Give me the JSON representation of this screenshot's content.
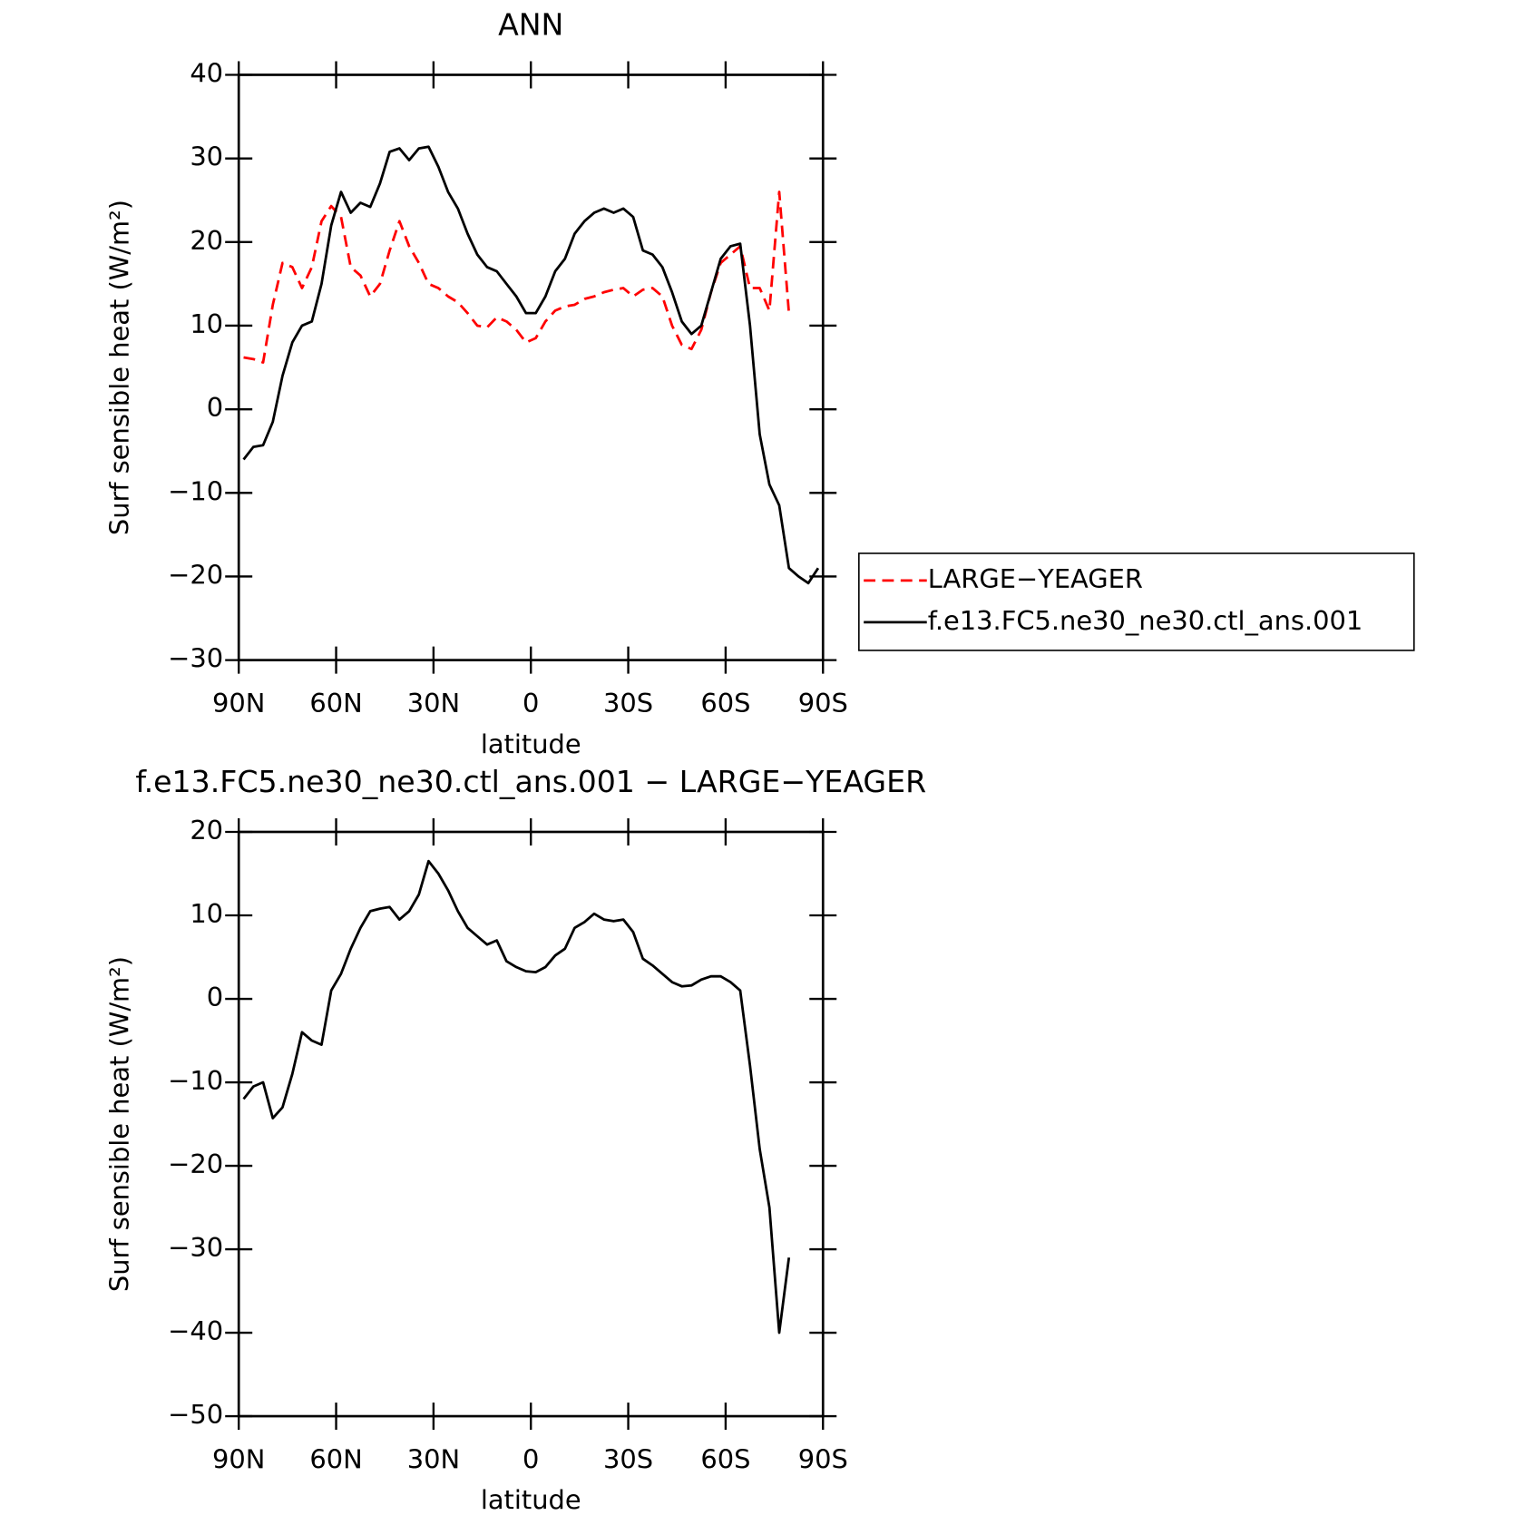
{
  "chart_data": [
    {
      "type": "line",
      "title": "ANN",
      "xlabel": "latitude",
      "ylabel": "Surf sensible heat (W/m²)",
      "x": [
        88.5,
        85.5,
        82.5,
        79.5,
        76.5,
        73.5,
        70.5,
        67.5,
        64.5,
        61.5,
        58.5,
        55.5,
        52.5,
        49.5,
        46.5,
        43.5,
        40.5,
        37.5,
        34.5,
        31.5,
        28.5,
        25.5,
        22.5,
        19.5,
        16.5,
        13.5,
        10.5,
        7.5,
        4.5,
        1.5,
        -1.5,
        -4.5,
        -7.5,
        -10.5,
        -13.5,
        -16.5,
        -19.5,
        -22.5,
        -25.5,
        -28.5,
        -31.5,
        -34.5,
        -37.5,
        -40.5,
        -43.5,
        -46.5,
        -49.5,
        -52.5,
        -55.5,
        -58.5,
        -61.5,
        -64.5,
        -67.5,
        -70.5,
        -73.5,
        -76.5,
        -79.5,
        -82.5,
        -85.5,
        -88.5
      ],
      "series": [
        {
          "name": "LARGE−YEAGER",
          "color": "#ff0000",
          "dashed": true,
          "values": [
            6.2,
            6,
            5.6,
            12.5,
            17.5,
            17,
            14.5,
            17,
            22.5,
            24.3,
            23,
            17,
            16,
            13.5,
            15,
            19,
            22.5,
            19.5,
            17.5,
            15,
            14.5,
            13.5,
            12.8,
            11.5,
            10,
            9.8,
            11,
            10.5,
            9.5,
            8,
            8.5,
            10.5,
            11.8,
            12.3,
            12.5,
            13.2,
            13.5,
            14,
            14.3,
            14.5,
            13.5,
            14.3,
            14.5,
            13.5,
            10,
            7.7,
            7.2,
            9.5,
            14,
            17.5,
            18.5,
            19.5,
            14.5,
            14.5,
            11.8,
            26,
            11.5,
            null,
            null,
            null
          ]
        },
        {
          "name": "f.e13.FC5.ne30_ne30.ctl_ans.001",
          "color": "#000000",
          "dashed": false,
          "values": [
            -6,
            -4.5,
            -4.3,
            -1.5,
            4,
            8,
            10,
            10.5,
            15,
            22,
            26,
            23.5,
            24.7,
            24.2,
            27,
            30.8,
            31.2,
            29.8,
            31.2,
            31.4,
            29,
            26,
            24,
            21,
            18.5,
            17,
            16.5,
            15,
            13.5,
            11.5,
            11.5,
            13.5,
            16.5,
            18,
            21,
            22.5,
            23.5,
            24,
            23.5,
            24,
            23,
            19,
            18.5,
            17,
            14,
            10.5,
            9,
            10,
            14,
            18,
            19.5,
            19.8,
            10,
            -3,
            -9,
            -11.5,
            -19,
            -20,
            -20.8,
            -19
          ]
        }
      ],
      "xlim": [
        90,
        -90
      ],
      "xticks": [
        {
          "value": 90,
          "label": "90N"
        },
        {
          "value": 60,
          "label": "60N"
        },
        {
          "value": 30,
          "label": "30N"
        },
        0,
        {
          "value": -30,
          "label": "30S"
        },
        {
          "value": -60,
          "label": "60S"
        },
        {
          "value": -90,
          "label": "90S"
        }
      ],
      "ylim": [
        -30,
        40
      ],
      "yticks": [
        {
          "value": -30,
          "label": "−30"
        },
        {
          "value": -20,
          "label": "−20"
        },
        {
          "value": -10,
          "label": "−10"
        },
        0,
        10,
        20,
        30,
        40
      ],
      "legend": "right"
    },
    {
      "type": "line",
      "title": "f.e13.FC5.ne30_ne30.ctl_ans.001 − LARGE−YEAGER",
      "xlabel": "latitude",
      "ylabel": "Surf sensible heat (W/m²)",
      "x": [
        88.5,
        85.5,
        82.5,
        79.5,
        76.5,
        73.5,
        70.5,
        67.5,
        64.5,
        61.5,
        58.5,
        55.5,
        52.5,
        49.5,
        46.5,
        43.5,
        40.5,
        37.5,
        34.5,
        31.5,
        28.5,
        25.5,
        22.5,
        19.5,
        16.5,
        13.5,
        10.5,
        7.5,
        4.5,
        1.5,
        -1.5,
        -4.5,
        -7.5,
        -10.5,
        -13.5,
        -16.5,
        -19.5,
        -22.5,
        -25.5,
        -28.5,
        -31.5,
        -34.5,
        -37.5,
        -40.5,
        -43.5,
        -46.5,
        -49.5,
        -52.5,
        -55.5,
        -58.5,
        -61.5,
        -64.5,
        -67.5,
        -70.5,
        -73.5,
        -76.5,
        -79.5,
        -82.5,
        -85.5,
        -88.5
      ],
      "series": [
        {
          "color": "#000000",
          "dashed": false,
          "values": [
            -12,
            -10.5,
            -10,
            -14.3,
            -13,
            -9,
            -4,
            -5,
            -5.5,
            1,
            3,
            6,
            8.5,
            10.5,
            10.8,
            11,
            9.5,
            10.5,
            12.5,
            16.5,
            15,
            13,
            10.5,
            8.5,
            7.5,
            6.5,
            7,
            4.5,
            3.8,
            3.3,
            3.2,
            3.8,
            5.2,
            6,
            8.5,
            9.2,
            10.2,
            9.5,
            9.3,
            9.5,
            8,
            4.8,
            4,
            3,
            2,
            1.5,
            1.6,
            2.3,
            2.7,
            2.7,
            2,
            1,
            -8,
            -18,
            -25,
            -40,
            -31,
            null,
            null,
            null
          ]
        }
      ],
      "xlim": [
        90,
        -90
      ],
      "xticks": [
        {
          "value": 90,
          "label": "90N"
        },
        {
          "value": 60,
          "label": "60N"
        },
        {
          "value": 30,
          "label": "30N"
        },
        0,
        {
          "value": -30,
          "label": "30S"
        },
        {
          "value": -60,
          "label": "60S"
        },
        {
          "value": -90,
          "label": "90S"
        }
      ],
      "ylim": [
        -50,
        20
      ],
      "yticks": [
        {
          "value": -50,
          "label": "−50"
        },
        {
          "value": -40,
          "label": "−40"
        },
        {
          "value": -30,
          "label": "−30"
        },
        {
          "value": -20,
          "label": "−20"
        },
        {
          "value": -10,
          "label": "−10"
        },
        0,
        10,
        20
      ]
    }
  ]
}
